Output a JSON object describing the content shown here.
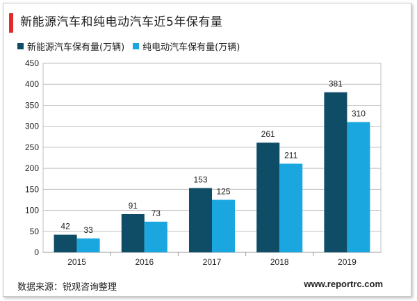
{
  "title": "新能源汽车和纯电动汽车近5年保有量",
  "source": "数据来源：锐观咨询整理",
  "website": "www.reportrc.com",
  "colors": {
    "accent": "#e02b2b",
    "series1": "#0f4c65",
    "series2": "#1aa7e0"
  },
  "chart_data": {
    "type": "bar",
    "categories": [
      "2015",
      "2016",
      "2017",
      "2018",
      "2019"
    ],
    "series": [
      {
        "name": "新能源汽车保有量(万辆)",
        "values": [
          42,
          91,
          153,
          261,
          381
        ]
      },
      {
        "name": "纯电动汽车保有量(万辆)",
        "values": [
          33,
          73,
          125,
          211,
          310
        ]
      }
    ],
    "ylim": [
      0,
      450
    ],
    "yticks": [
      0,
      50,
      100,
      150,
      200,
      250,
      300,
      350,
      400,
      450
    ],
    "grid": true,
    "legend": "top-left",
    "title": "新能源汽车和纯电动汽车近5年保有量",
    "xlabel": "",
    "ylabel": ""
  }
}
